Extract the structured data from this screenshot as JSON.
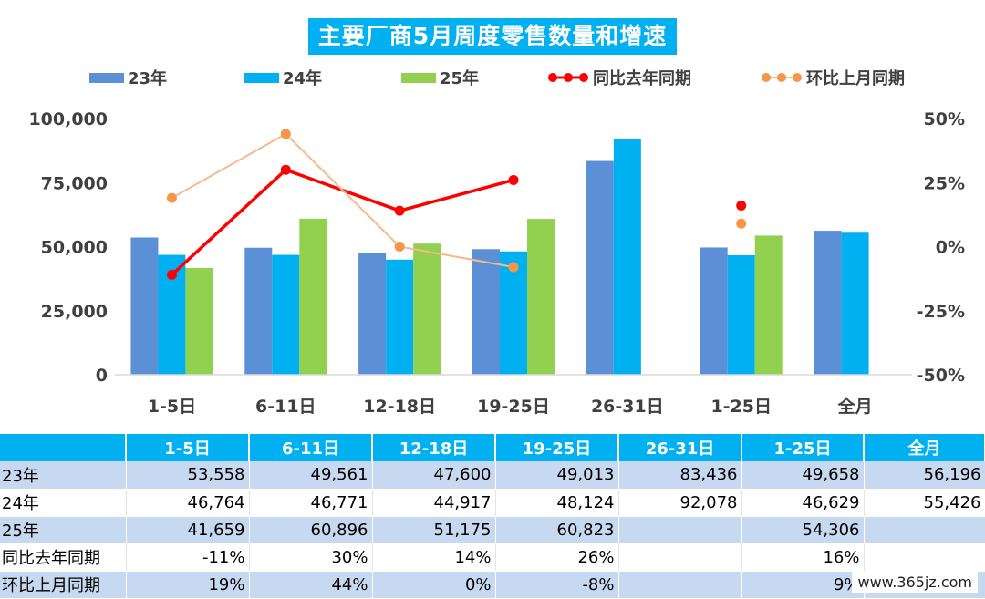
{
  "chart_data": {
    "type": "bar",
    "title": "主要厂商5月周度零售数量和增速",
    "categories": [
      "1-5日",
      "6-11日",
      "12-18日",
      "19-25日",
      "26-31日",
      "1-25日",
      "全月"
    ],
    "series": [
      {
        "name": "23年",
        "type": "bar",
        "axis": "left",
        "color": "#5b8fd6",
        "values": [
          53558,
          49561,
          47600,
          49013,
          83436,
          49658,
          56196
        ]
      },
      {
        "name": "24年",
        "type": "bar",
        "axis": "left",
        "color": "#00b0f0",
        "values": [
          46764,
          46771,
          44917,
          48124,
          92078,
          46629,
          55426
        ]
      },
      {
        "name": "25年",
        "type": "bar",
        "axis": "left",
        "color": "#92d050",
        "values": [
          41659,
          60896,
          51175,
          60823,
          null,
          54306,
          null
        ]
      },
      {
        "name": "同比去年同期",
        "type": "line",
        "axis": "right",
        "color": "#ff0000",
        "values": [
          -11,
          30,
          14,
          26,
          null,
          16,
          null
        ]
      },
      {
        "name": "环比上月同期",
        "type": "line",
        "axis": "right",
        "color": "#f8b98a",
        "marker_color": "#f79646",
        "values": [
          19,
          44,
          0,
          -8,
          null,
          9,
          null
        ]
      }
    ],
    "ylim_left": [
      0,
      100000
    ],
    "ylim_right": [
      -50,
      50
    ],
    "yticks_left": [
      "0",
      "25,000",
      "50,000",
      "75,000",
      "100,000"
    ],
    "yticks_right": [
      "-50%",
      "-25%",
      "0%",
      "25%",
      "50%"
    ],
    "legend_position": "top"
  },
  "table": {
    "headers": [
      "",
      "1-5日",
      "6-11日",
      "12-18日",
      "19-25日",
      "26-31日",
      "1-25日",
      "全月"
    ],
    "rows": [
      {
        "label": "23年",
        "cells": [
          "53,558",
          "49,561",
          "47,600",
          "49,013",
          "83,436",
          "49,658",
          "56,196"
        ]
      },
      {
        "label": "24年",
        "cells": [
          "46,764",
          "46,771",
          "44,917",
          "48,124",
          "92,078",
          "46,629",
          "55,426"
        ]
      },
      {
        "label": "25年",
        "cells": [
          "41,659",
          "60,896",
          "51,175",
          "60,823",
          "",
          "54,306",
          ""
        ]
      },
      {
        "label": "同比去年同期",
        "cells": [
          "-11%",
          "30%",
          "14%",
          "26%",
          "",
          "16%",
          ""
        ]
      },
      {
        "label": "环比上月同期",
        "cells": [
          "19%",
          "44%",
          "0%",
          "-8%",
          "",
          "9%",
          ""
        ]
      }
    ]
  },
  "watermark": "www.365jz.com"
}
